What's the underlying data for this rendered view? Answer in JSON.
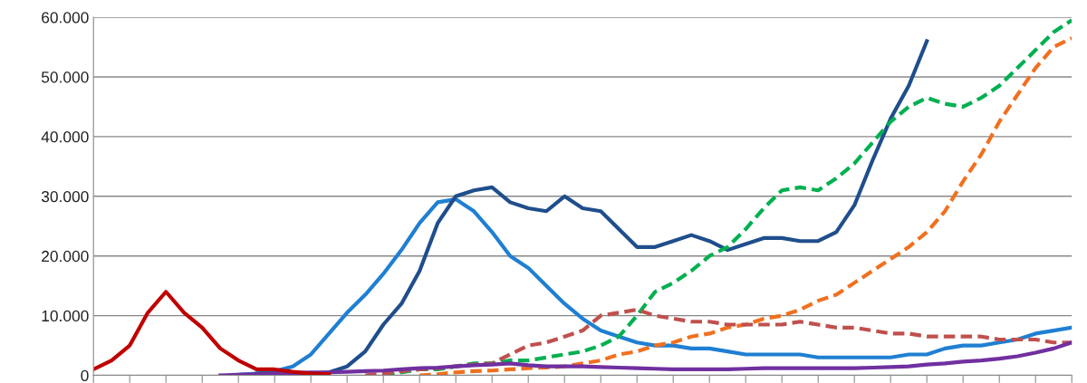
{
  "chart_data": {
    "type": "line",
    "tick_labels": "y",
    "grid": "y",
    "marker": "none",
    "categories": [
      null,
      null,
      null,
      null,
      null,
      null,
      null,
      null,
      null,
      null,
      null,
      null,
      null,
      null,
      null,
      null,
      null,
      null,
      null,
      null,
      null,
      null,
      null,
      null,
      null,
      null,
      null,
      null,
      null,
      null,
      null,
      null,
      null,
      null,
      null,
      null,
      null,
      null,
      null,
      null,
      null,
      null,
      null,
      null,
      null,
      null,
      null,
      null,
      null,
      null,
      null,
      null,
      null,
      null,
      null
    ],
    "ylim": [
      0,
      60000
    ],
    "yticks": [
      {
        "value": 0,
        "label": "0"
      },
      {
        "value": 10000,
        "label": "10.000"
      },
      {
        "value": 20000,
        "label": "20.000"
      },
      {
        "value": 30000,
        "label": "30.000"
      },
      {
        "value": 40000,
        "label": "40.000"
      },
      {
        "value": 50000,
        "label": "50.000"
      },
      {
        "value": 60000,
        "label": "60.000"
      }
    ],
    "series": [
      {
        "color": "#c00000",
        "line_style": "solid",
        "values": [
          1000,
          2500,
          5000,
          10500,
          14000,
          10500,
          8000,
          4500,
          2500,
          1000,
          1000,
          600,
          300,
          200,
          null,
          null,
          null,
          null,
          null,
          null,
          null,
          null,
          null,
          null,
          null,
          null,
          null,
          null,
          null,
          null,
          null,
          null,
          null,
          null,
          null,
          null,
          null,
          null,
          null,
          null,
          null,
          null,
          null,
          null,
          null,
          null,
          null,
          null,
          null,
          null,
          null,
          null,
          null,
          null,
          null
        ]
      },
      {
        "color": "#1f7fd2",
        "line_style": "solid",
        "values": [
          null,
          null,
          null,
          null,
          null,
          null,
          null,
          null,
          100,
          300,
          700,
          1500,
          3500,
          7000,
          10500,
          13500,
          17000,
          21000,
          25500,
          29000,
          29500,
          27500,
          24000,
          20000,
          18000,
          15000,
          12000,
          9500,
          7500,
          6500,
          5500,
          5000,
          5000,
          4500,
          4500,
          4000,
          3500,
          3500,
          3500,
          3500,
          3000,
          3000,
          3000,
          3000,
          3000,
          3500,
          3500,
          4500,
          5000,
          5000,
          5500,
          6000,
          7000,
          7500,
          8000
        ]
      },
      {
        "color": "#1f4e8c",
        "line_style": "solid",
        "values": [
          null,
          null,
          null,
          null,
          null,
          null,
          null,
          null,
          null,
          300,
          300,
          300,
          300,
          500,
          1500,
          4000,
          8500,
          12000,
          17500,
          25500,
          30000,
          31000,
          31500,
          29000,
          28000,
          27500,
          30000,
          28000,
          27500,
          24500,
          21500,
          21500,
          22500,
          23500,
          22500,
          21000,
          22000,
          23000,
          23000,
          22500,
          22500,
          24000,
          28500,
          36000,
          43000,
          48500,
          56000,
          null,
          null,
          null,
          null,
          null,
          null,
          null,
          null
        ]
      },
      {
        "color": "#00b050",
        "line_style": "dashed",
        "values": [
          null,
          null,
          null,
          null,
          null,
          null,
          null,
          null,
          null,
          null,
          null,
          null,
          null,
          null,
          null,
          null,
          0,
          500,
          1000,
          1000,
          1500,
          2000,
          2000,
          2500,
          2500,
          3000,
          3500,
          4000,
          5000,
          6500,
          10000,
          14000,
          15500,
          17500,
          20000,
          21500,
          24500,
          28000,
          31000,
          31500,
          31000,
          33000,
          35500,
          39000,
          42500,
          45000,
          46500,
          45500,
          45000,
          46500,
          48500,
          51500,
          54500,
          57500,
          59500
        ]
      },
      {
        "color": "#f07020",
        "line_style": "dashed",
        "values": [
          null,
          null,
          null,
          null,
          null,
          null,
          null,
          null,
          null,
          null,
          null,
          null,
          null,
          null,
          null,
          null,
          null,
          null,
          0,
          200,
          500,
          700,
          800,
          1000,
          1200,
          1300,
          1500,
          2000,
          2500,
          3500,
          4000,
          5000,
          5500,
          6500,
          7000,
          8000,
          8500,
          9500,
          10000,
          11000,
          12500,
          13500,
          15500,
          17500,
          19500,
          21500,
          24000,
          27500,
          32500,
          37000,
          42500,
          47000,
          51500,
          55000,
          56500
        ]
      },
      {
        "color": "#c0504d",
        "line_style": "dashed",
        "values": [
          null,
          null,
          null,
          null,
          null,
          null,
          null,
          null,
          null,
          null,
          null,
          null,
          null,
          null,
          null,
          0,
          300,
          700,
          1000,
          1200,
          1500,
          1800,
          2000,
          3500,
          5000,
          5500,
          6500,
          7500,
          10000,
          10500,
          11000,
          10000,
          9500,
          9000,
          9000,
          8500,
          8500,
          8500,
          8500,
          9000,
          8500,
          8000,
          8000,
          7500,
          7000,
          7000,
          6500,
          6500,
          6500,
          6500,
          6000,
          6000,
          6000,
          5500,
          5500
        ]
      },
      {
        "color": "#7030a0",
        "line_style": "solid",
        "values": [
          null,
          null,
          null,
          null,
          null,
          null,
          null,
          0,
          100,
          200,
          300,
          400,
          500,
          500,
          600,
          700,
          800,
          1000,
          1200,
          1300,
          1500,
          1700,
          1800,
          2000,
          1700,
          1500,
          1500,
          1500,
          1400,
          1300,
          1200,
          1100,
          1000,
          1000,
          1000,
          1000,
          1100,
          1200,
          1200,
          1200,
          1200,
          1200,
          1200,
          1300,
          1400,
          1500,
          1800,
          2000,
          2300,
          2500,
          2800,
          3200,
          3800,
          4500,
          5500
        ]
      }
    ]
  }
}
